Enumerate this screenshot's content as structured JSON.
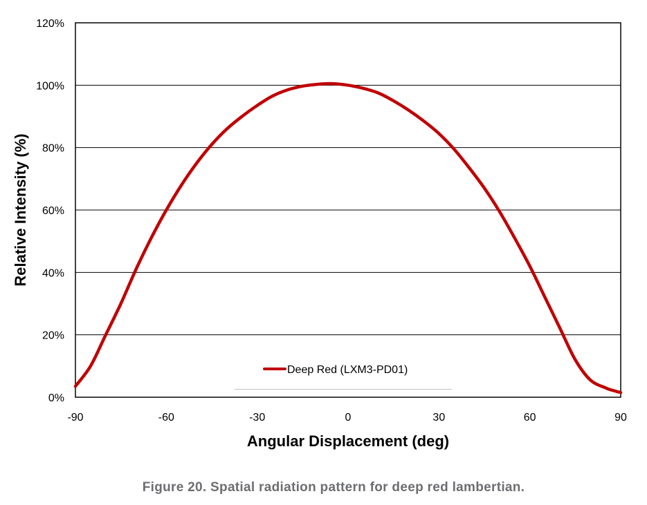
{
  "chart_data": {
    "type": "line",
    "xlabel": "Angular Displacement (deg)",
    "ylabel": "Relative Intensity (%)",
    "xlim": [
      -90,
      90
    ],
    "ylim": [
      0,
      120
    ],
    "x_ticks": [
      "-90",
      "-60",
      "-30",
      "0",
      "30",
      "60",
      "90"
    ],
    "y_ticks": [
      "0%",
      "20%",
      "40%",
      "60%",
      "80%",
      "100%",
      "120%"
    ],
    "grid": "horizontal",
    "legend_position": "bottom-center",
    "series": [
      {
        "name": "Deep Red (LXM3-PD01)",
        "color": "#c00000",
        "x": [
          -90,
          -85,
          -80,
          -75,
          -70,
          -65,
          -60,
          -55,
          -50,
          -45,
          -40,
          -35,
          -30,
          -25,
          -20,
          -15,
          -10,
          -5,
          0,
          5,
          10,
          15,
          20,
          25,
          30,
          35,
          40,
          45,
          50,
          55,
          60,
          65,
          70,
          75,
          80,
          85,
          87,
          90
        ],
        "y": [
          3.5,
          10,
          20,
          30,
          41,
          51,
          60,
          68,
          75,
          81,
          86,
          90,
          93.5,
          96.5,
          98.5,
          99.7,
          100.3,
          100.5,
          100,
          99,
          97.5,
          95,
          92,
          88.5,
          84.5,
          79.5,
          73.5,
          67,
          59.5,
          51,
          42,
          32,
          22,
          12,
          5.5,
          3,
          2.3,
          1.5
        ]
      }
    ]
  },
  "caption": "Figure 20.  Spatial radiation pattern for deep red lambertian."
}
